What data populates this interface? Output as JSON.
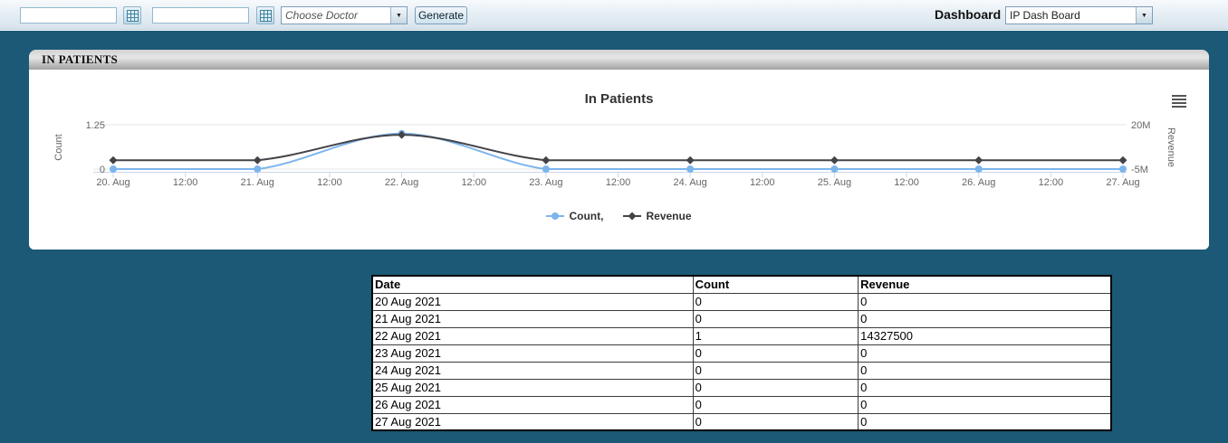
{
  "toolbar": {
    "date_from": {
      "value": ""
    },
    "date_to": {
      "value": ""
    },
    "doctor_select": {
      "value": "Choose Doctor"
    },
    "generate_label": "Generate",
    "dashboard_label": "Dashboard",
    "dashboard_select": {
      "value": "IP Dash Board"
    }
  },
  "panel": {
    "header": "IN PATIENTS"
  },
  "chart_data": {
    "type": "line",
    "title": "In Patients",
    "categories": [
      "20 Aug",
      "21 Aug",
      "22 Aug",
      "23 Aug",
      "24 Aug",
      "25 Aug",
      "26 Aug",
      "27 Aug"
    ],
    "x_labels": [
      "20. Aug",
      "12:00",
      "21. Aug",
      "12:00",
      "22. Aug",
      "12:00",
      "23. Aug",
      "12:00",
      "24. Aug",
      "12:00",
      "25. Aug",
      "12:00",
      "26. Aug",
      "12:00",
      "27. Aug"
    ],
    "series": [
      {
        "name": "Count,",
        "color": "#7cb5ec",
        "marker": "circle",
        "axis": "left",
        "values": [
          0,
          0,
          1,
          0,
          0,
          0,
          0,
          0
        ]
      },
      {
        "name": "Revenue",
        "color": "#434348",
        "marker": "diamond",
        "axis": "right",
        "values": [
          0,
          0,
          14327500,
          0,
          0,
          0,
          0,
          0
        ]
      }
    ],
    "left_axis": {
      "title": "Count",
      "min": 0,
      "max": 1.25,
      "ticks": [
        {
          "value": 0,
          "label": "0"
        },
        {
          "value": 1.25,
          "label": "1.25"
        }
      ]
    },
    "right_axis": {
      "title": "Revenue",
      "min": -5000000,
      "max": 20000000,
      "ticks": [
        {
          "value": -5000000,
          "label": "-5M"
        },
        {
          "value": 20000000,
          "label": "20M"
        }
      ]
    },
    "legend_position": "bottom",
    "grid": true
  },
  "table": {
    "headers": [
      "Date",
      "Count",
      "Revenue"
    ],
    "rows": [
      [
        "20 Aug 2021",
        "0",
        "0"
      ],
      [
        "21 Aug 2021",
        "0",
        "0"
      ],
      [
        "22 Aug 2021",
        "1",
        "14327500"
      ],
      [
        "23 Aug 2021",
        "0",
        "0"
      ],
      [
        "24 Aug 2021",
        "0",
        "0"
      ],
      [
        "25 Aug 2021",
        "0",
        "0"
      ],
      [
        "26 Aug 2021",
        "0",
        "0"
      ],
      [
        "27 Aug 2021",
        "0",
        "0"
      ]
    ]
  },
  "colors": {
    "page_background": "#1b5977",
    "series_count": "#7cb5ec",
    "series_revenue": "#434348",
    "grid_line": "#e6e6e6",
    "axis_line": "#ccd6eb",
    "tick_text": "#666666"
  }
}
